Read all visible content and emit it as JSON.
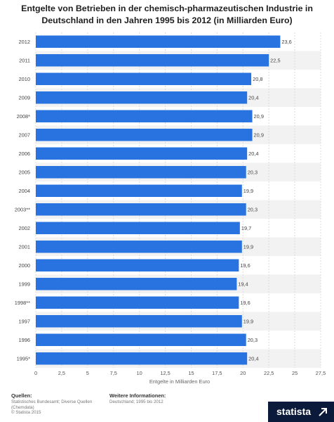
{
  "chart_data": {
    "type": "bar",
    "orientation": "horizontal",
    "title": "Entgelte von Betrieben in der chemisch-pharmazeutischen Industrie in Deutschland in den Jahren 1995 bis 2012 (in Milliarden Euro)",
    "xlabel": "Entgelte in Milliarden Euro",
    "categories": [
      "2012",
      "2011",
      "2010",
      "2009",
      "2008*",
      "2007",
      "2006",
      "2005",
      "2004",
      "2003**",
      "2002",
      "2001",
      "2000",
      "1999",
      "1998**",
      "1997",
      "1996",
      "1995*"
    ],
    "values": [
      23.6,
      22.5,
      20.8,
      20.4,
      20.9,
      20.9,
      20.4,
      20.3,
      19.9,
      20.3,
      19.7,
      19.9,
      19.6,
      19.4,
      19.6,
      19.9,
      20.3,
      20.4
    ],
    "value_labels": [
      "23,6",
      "22,5",
      "20,8",
      "20,4",
      "20,9",
      "20,9",
      "20,4",
      "20,3",
      "19,9",
      "20,3",
      "19,7",
      "19,9",
      "19,6",
      "19,4",
      "19,6",
      "19,9",
      "20,3",
      "20,4"
    ],
    "xlim": [
      0,
      27.5
    ],
    "xticks": [
      0,
      2.5,
      5,
      7.5,
      10,
      12.5,
      15,
      17.5,
      20,
      22.5,
      25,
      27.5
    ],
    "xtick_labels": [
      "0",
      "2,5",
      "5",
      "7,5",
      "10",
      "12,5",
      "15",
      "17,5",
      "20",
      "22,5",
      "25",
      "27,5"
    ],
    "grid": true,
    "bar_color": "#2873e0"
  },
  "footer": {
    "sources_heading": "Quellen:",
    "sources_lines": [
      "Statistisches Bundesamt; Diverse Quellen",
      "(Chemdata)",
      "© Statista 2015"
    ],
    "info_heading": "Weitere Informationen:",
    "info_lines": [
      "Deutschland; 1995 bis 2012"
    ],
    "brand": "statista"
  }
}
